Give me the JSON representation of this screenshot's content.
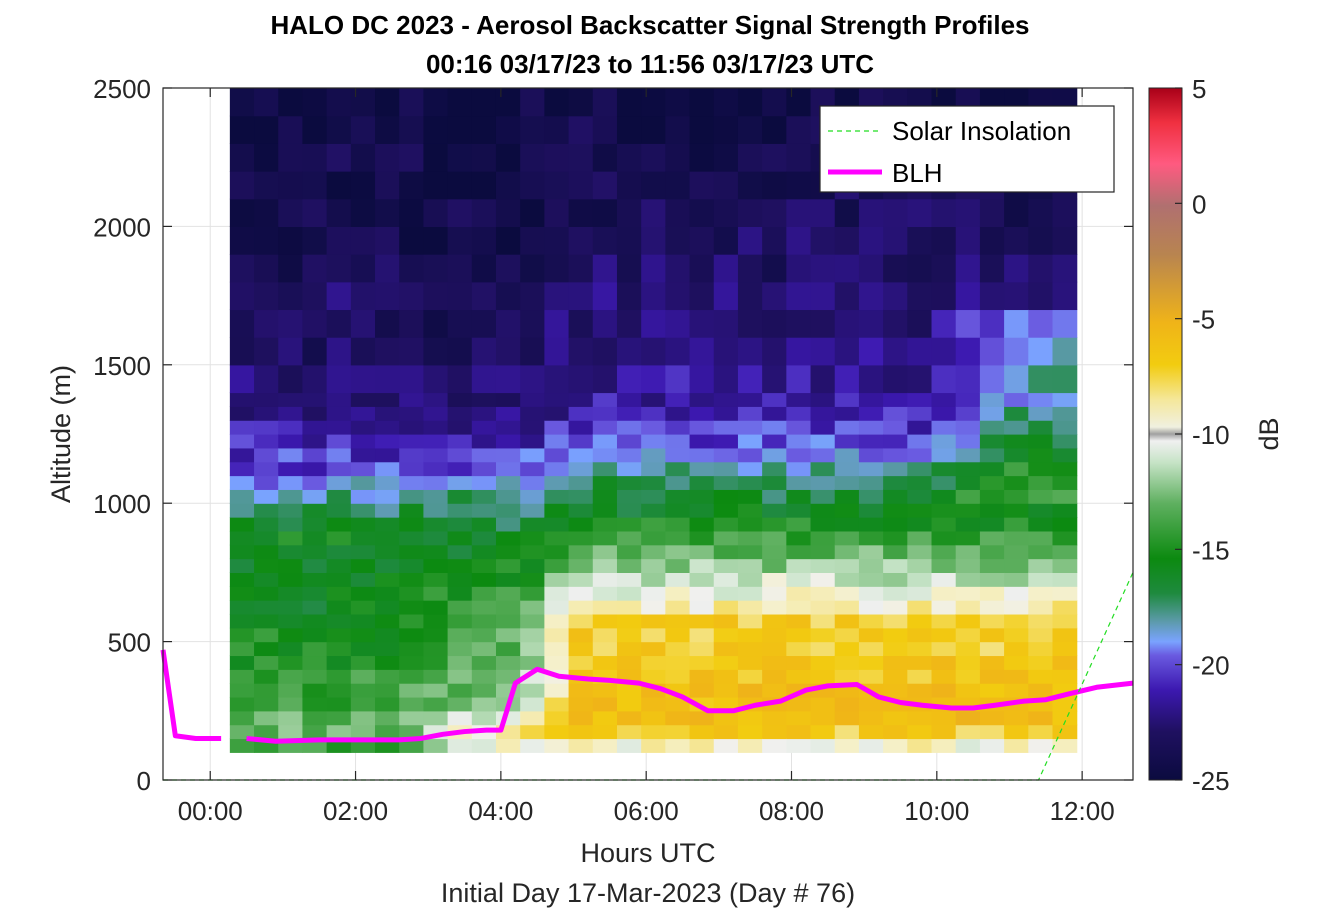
{
  "chart_data": {
    "type": "heatmap",
    "title": "HALO DC 2023 - Aerosol Backscatter Signal Strength Profiles",
    "subtitle": "00:16 03/17/23 to 11:56 03/17/23  UTC",
    "xlabel": "Hours UTC",
    "xlabel2": "Initial Day 17-Mar-2023 (Day # 76)",
    "ylabel": "Altitude (m)",
    "colorbar_label": "dB",
    "xlim_hours": [
      -0.65,
      12.7
    ],
    "ylim": [
      0,
      2500
    ],
    "xticks": [
      0,
      2,
      4,
      6,
      8,
      10,
      12
    ],
    "xtick_labels": [
      "00:00",
      "02:00",
      "04:00",
      "06:00",
      "08:00",
      "10:00",
      "12:00"
    ],
    "yticks": [
      0,
      500,
      1000,
      1500,
      2000,
      2500
    ],
    "ytick_labels": [
      "0",
      "500",
      "1000",
      "1500",
      "2000",
      "2500"
    ],
    "clim": [
      -25,
      5
    ],
    "cticks": [
      5,
      0,
      -5,
      -10,
      -15,
      -20,
      -25
    ],
    "ctick_labels": [
      "5",
      "0",
      "-5",
      "-10",
      "-15",
      "-20",
      "-25"
    ],
    "grid": true,
    "legend_position": "top-right",
    "legend": [
      "Solar Insolation",
      "BLH"
    ],
    "heatmap": {
      "x_start_hours": 0.27,
      "x_end_hours": 11.93,
      "bin_width_hours": 0.333,
      "altitude_bins_m": [
        100,
        150,
        200,
        250,
        300,
        350,
        400,
        450,
        500,
        550,
        600,
        650,
        700,
        750,
        800,
        850,
        900,
        950,
        1000,
        1050,
        1100,
        1150,
        1200,
        1250,
        1300,
        1350,
        1400,
        1500,
        1600,
        1700,
        1800,
        1900,
        2000,
        2100,
        2200,
        2300,
        2400
      ],
      "band_profile_note": "dB values per altitude bin for early, morning-transition and daytime periods",
      "profiles_db": {
        "early": [
          -14,
          -13,
          -13,
          -14,
          -14,
          -14,
          -15,
          -15,
          -15,
          -16,
          -16,
          -16,
          -16,
          -16,
          -16,
          -15.5,
          -16,
          -17,
          -18,
          -19,
          -20,
          -20.5,
          -21,
          -21.5,
          -22,
          -22.5,
          -22.5,
          -23,
          -23.5,
          -23,
          -23.5,
          -24,
          -24,
          -24.5,
          -24,
          -24.5,
          -24.5
        ],
        "transition": [
          -9,
          -9,
          -10,
          -11,
          -12,
          -12.5,
          -13,
          -13,
          -13,
          -13.5,
          -14,
          -14,
          -15,
          -15.5,
          -16,
          -16.5,
          -17,
          -17,
          -17.5,
          -19,
          -20,
          -20.5,
          -21,
          -21.5,
          -22,
          -22.5,
          -22.5,
          -23,
          -23,
          -23.5,
          -23.5,
          -24,
          -24,
          -24,
          -24,
          -24.5,
          -24.5
        ],
        "day": [
          -9.5,
          -7,
          -6,
          -6,
          -6,
          -6.5,
          -6.5,
          -7,
          -7,
          -7,
          -9,
          -10,
          -11,
          -12,
          -13,
          -14,
          -15,
          -16,
          -16.5,
          -17,
          -18,
          -19,
          -20,
          -20.5,
          -21,
          -21.5,
          -21.5,
          -22,
          -22.5,
          -22.5,
          -23,
          -23,
          -23.5,
          -23.5,
          -24,
          -24,
          -24.5
        ]
      }
    },
    "series": [
      {
        "name": "BLH",
        "color": "#ff00ff",
        "segments": [
          {
            "x": [
              -0.65,
              -0.48,
              -0.2,
              0.15
            ],
            "y": [
              470,
              160,
              150,
              150
            ]
          },
          {
            "x": [
              0.5,
              0.9,
              1.5,
              2.0,
              2.6,
              2.9,
              3.2,
              3.5,
              3.8,
              4.0,
              4.2,
              4.5,
              4.8,
              5.2,
              5.5,
              5.9,
              6.2,
              6.5,
              6.85,
              7.2,
              7.5,
              7.85,
              8.2,
              8.5,
              8.9,
              9.2,
              9.5,
              9.8,
              10.2,
              10.5,
              10.8,
              11.2,
              11.5,
              11.8,
              12.2,
              12.7
            ],
            "y": [
              150,
              140,
              145,
              145,
              145,
              150,
              165,
              175,
              180,
              180,
              350,
              400,
              375,
              365,
              360,
              350,
              330,
              300,
              250,
              250,
              270,
              285,
              325,
              340,
              345,
              300,
              280,
              270,
              260,
              260,
              270,
              285,
              290,
              310,
              335,
              350
            ]
          }
        ]
      },
      {
        "name": "Solar Insolation",
        "color": "#22dd22",
        "x": [
          -0.65,
          11.4,
          12.7
        ],
        "y": [
          0,
          0,
          750
        ]
      }
    ]
  }
}
